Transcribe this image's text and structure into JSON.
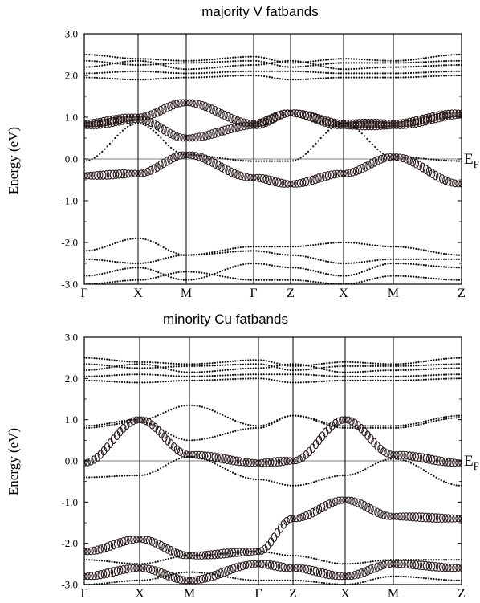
{
  "chart_data": [
    {
      "type": "scatter",
      "title": "majority V fatbands",
      "ylabel": "Energy (eV)",
      "ylim": [
        -3.0,
        3.0
      ],
      "yticks": [
        3.0,
        2.0,
        1.0,
        0.0,
        -1.0,
        -2.0,
        -3.0
      ],
      "ytick_labels": [
        "3.0",
        "2.0",
        "1.0",
        "0.0",
        "-1.0",
        "-2.0",
        "-3.0"
      ],
      "kpoints": [
        "Γ",
        "X",
        "M",
        "Γ",
        "Z",
        "X",
        "M",
        "Z"
      ],
      "fermi_label": {
        "main": "E",
        "sub": "F"
      },
      "fermi_level": 0.0,
      "highlight_series": "majority V character",
      "bands": [
        {
          "name": "",
          "highlight": false,
          "values": [
            2.5,
            2.4,
            2.35,
            2.45,
            2.3,
            2.4,
            2.35,
            2.5
          ]
        },
        {
          "name": "",
          "highlight": false,
          "values": [
            2.35,
            2.25,
            2.3,
            2.35,
            2.2,
            2.3,
            2.3,
            2.35
          ]
        },
        {
          "name": "",
          "highlight": false,
          "values": [
            2.2,
            2.35,
            2.15,
            2.25,
            2.35,
            2.15,
            2.2,
            2.25
          ]
        },
        {
          "name": "",
          "highlight": false,
          "values": [
            2.05,
            2.1,
            2.05,
            2.1,
            2.1,
            2.05,
            2.05,
            2.1
          ]
        },
        {
          "name": "",
          "highlight": false,
          "values": [
            1.95,
            1.9,
            1.95,
            2.0,
            1.9,
            1.95,
            1.95,
            2.0
          ]
        },
        {
          "name": "",
          "highlight": true,
          "values": [
            0.85,
            1.0,
            1.35,
            0.85,
            1.1,
            0.85,
            0.85,
            1.1
          ]
        },
        {
          "name": "",
          "highlight": true,
          "values": [
            0.8,
            0.95,
            0.5,
            0.8,
            1.1,
            0.8,
            0.8,
            1.05
          ]
        },
        {
          "name": "",
          "highlight": false,
          "values": [
            -0.05,
            0.85,
            0.1,
            -0.05,
            -0.05,
            0.85,
            0.05,
            -0.05
          ]
        },
        {
          "name": "",
          "highlight": true,
          "values": [
            -0.4,
            -0.35,
            0.1,
            -0.45,
            -0.6,
            -0.35,
            0.05,
            -0.6
          ]
        },
        {
          "name": "",
          "highlight": false,
          "values": [
            -2.2,
            -1.9,
            -2.3,
            -2.1,
            -2.1,
            -2.0,
            -2.1,
            -2.3
          ]
        },
        {
          "name": "",
          "highlight": false,
          "values": [
            -2.4,
            -2.5,
            -2.3,
            -2.2,
            -2.3,
            -2.5,
            -2.4,
            -2.4
          ]
        },
        {
          "name": "",
          "highlight": false,
          "values": [
            -2.8,
            -2.6,
            -2.9,
            -2.5,
            -2.6,
            -2.8,
            -2.5,
            -2.6
          ]
        },
        {
          "name": "",
          "highlight": false,
          "values": [
            -3.0,
            -2.9,
            -2.7,
            -2.9,
            -2.9,
            -3.0,
            -2.8,
            -2.9
          ]
        }
      ]
    },
    {
      "type": "scatter",
      "title": "minority Cu fatbands",
      "ylabel": "Energy (eV)",
      "ylim": [
        -3.0,
        3.0
      ],
      "yticks": [
        3.0,
        2.0,
        1.0,
        0.0,
        -1.0,
        -2.0,
        -3.0
      ],
      "ytick_labels": [
        "3.0",
        "2.0",
        "1.0",
        "0.0",
        "-1.0",
        "-2.0",
        "-3.0"
      ],
      "kpoints": [
        "Γ",
        "X",
        "M",
        "Γ",
        "Z",
        "X",
        "M",
        "Z"
      ],
      "fermi_label": {
        "main": "E",
        "sub": "F"
      },
      "fermi_level": 0.0,
      "highlight_series": "minority Cu character",
      "bands": [
        {
          "name": "",
          "highlight": false,
          "values": [
            2.5,
            2.4,
            2.35,
            2.45,
            2.3,
            2.4,
            2.35,
            2.5
          ]
        },
        {
          "name": "",
          "highlight": false,
          "values": [
            2.35,
            2.25,
            2.3,
            2.35,
            2.2,
            2.3,
            2.3,
            2.35
          ]
        },
        {
          "name": "",
          "highlight": false,
          "values": [
            2.2,
            2.35,
            2.15,
            2.25,
            2.35,
            2.15,
            2.2,
            2.25
          ]
        },
        {
          "name": "",
          "highlight": false,
          "values": [
            2.05,
            2.1,
            2.05,
            2.1,
            2.1,
            2.05,
            2.05,
            2.1
          ]
        },
        {
          "name": "",
          "highlight": false,
          "values": [
            1.95,
            1.9,
            1.95,
            2.0,
            1.9,
            1.95,
            1.95,
            2.0
          ]
        },
        {
          "name": "",
          "highlight": false,
          "values": [
            0.85,
            1.0,
            1.35,
            0.85,
            1.1,
            0.85,
            0.85,
            1.1
          ]
        },
        {
          "name": "",
          "highlight": false,
          "values": [
            0.8,
            0.95,
            0.5,
            0.8,
            1.1,
            0.8,
            0.8,
            1.05
          ]
        },
        {
          "name": "",
          "highlight": true,
          "values": [
            -0.05,
            1.0,
            0.15,
            -0.05,
            0.0,
            1.0,
            0.15,
            -0.05
          ]
        },
        {
          "name": "",
          "highlight": false,
          "values": [
            -0.4,
            -0.35,
            0.1,
            -0.45,
            -0.6,
            -0.35,
            0.05,
            -0.6
          ]
        },
        {
          "name": "",
          "highlight": true,
          "values": [
            -2.2,
            -1.9,
            -2.3,
            -2.2,
            -1.4,
            -0.95,
            -1.35,
            -1.4
          ]
        },
        {
          "name": "",
          "highlight": false,
          "values": [
            -2.4,
            -2.5,
            -2.3,
            -2.2,
            -2.3,
            -2.5,
            -2.4,
            -2.4
          ]
        },
        {
          "name": "",
          "highlight": true,
          "values": [
            -2.8,
            -2.6,
            -2.9,
            -2.5,
            -2.6,
            -2.8,
            -2.5,
            -2.6
          ]
        },
        {
          "name": "",
          "highlight": false,
          "values": [
            -3.0,
            -2.9,
            -2.7,
            -2.9,
            -2.9,
            -3.0,
            -2.8,
            -2.9
          ]
        }
      ]
    }
  ]
}
